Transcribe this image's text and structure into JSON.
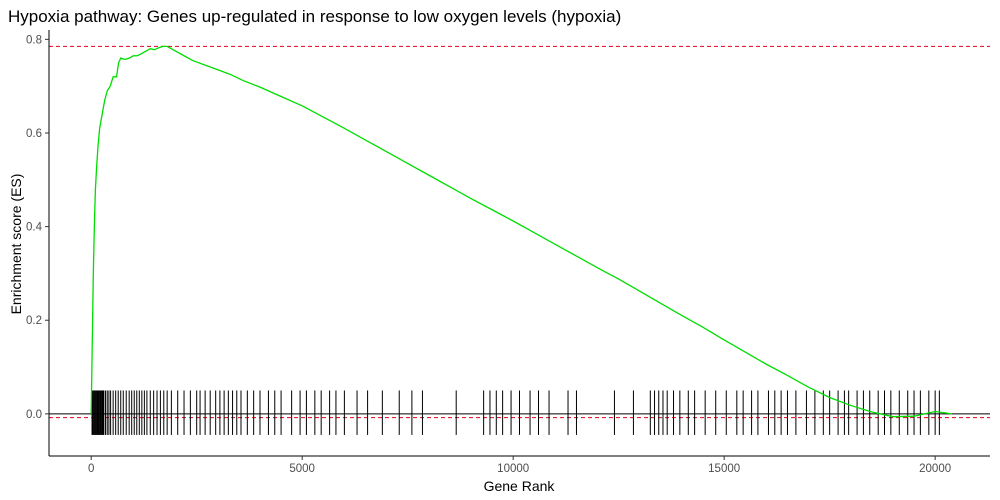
{
  "chart_data": {
    "type": "line",
    "title": "Hypoxia pathway: Genes up-regulated in response to low oxygen levels (hypoxia)",
    "xlabel": "Gene Rank",
    "ylabel": "Enrichment score (ES)",
    "xlim": [
      -1000,
      21300
    ],
    "ylim": [
      -0.09,
      0.82
    ],
    "x_ticks": [
      0,
      5000,
      10000,
      15000,
      20000
    ],
    "x_tick_labels": [
      "0",
      "5000",
      "10000",
      "15000",
      "20000"
    ],
    "y_ticks": [
      0.0,
      0.2,
      0.4,
      0.6,
      0.8
    ],
    "y_tick_labels": [
      "0.0",
      "0.2",
      "0.4",
      "0.6",
      "0.8"
    ],
    "grid": false,
    "colors": {
      "es_curve": "#00dd00",
      "reference_lines": "#e3001b",
      "hits": "#000000",
      "zero_line": "#000000"
    },
    "series": [
      {
        "x": [
          0,
          20,
          50,
          80,
          100,
          130,
          160,
          200,
          260,
          320,
          380,
          450,
          520,
          600,
          650,
          700,
          800,
          900,
          1000,
          1100,
          1200,
          1300,
          1400,
          1500,
          1600,
          1700,
          1800,
          2000,
          2200,
          2400,
          2700,
          3000,
          3300,
          3600,
          4000,
          4500,
          5000,
          5500,
          6000,
          6500,
          7000,
          7500,
          8000,
          8500,
          9000,
          9500,
          10000,
          10500,
          11000,
          11500,
          12000,
          12500,
          13000,
          13500,
          14000,
          14500,
          15000,
          15500,
          16000,
          16500,
          17000,
          17500,
          18000,
          18500,
          19000,
          19500,
          20000,
          20400
        ],
        "values": [
          0.0,
          0.12,
          0.3,
          0.42,
          0.48,
          0.53,
          0.57,
          0.61,
          0.64,
          0.67,
          0.69,
          0.7,
          0.72,
          0.72,
          0.75,
          0.76,
          0.757,
          0.76,
          0.765,
          0.765,
          0.77,
          0.775,
          0.78,
          0.778,
          0.782,
          0.785,
          0.785,
          0.775,
          0.765,
          0.755,
          0.745,
          0.735,
          0.725,
          0.712,
          0.698,
          0.678,
          0.658,
          0.634,
          0.61,
          0.585,
          0.56,
          0.535,
          0.51,
          0.485,
          0.46,
          0.436,
          0.412,
          0.387,
          0.362,
          0.337,
          0.312,
          0.288,
          0.262,
          0.236,
          0.21,
          0.185,
          0.158,
          0.132,
          0.106,
          0.082,
          0.057,
          0.035,
          0.018,
          0.004,
          -0.006,
          -0.005,
          0.005,
          0.0
        ]
      }
    ],
    "hline_max": 0.785,
    "hline_min": -0.008,
    "hline_zero": 0.0,
    "hits": [
      20,
      40,
      60,
      80,
      100,
      120,
      140,
      160,
      180,
      200,
      220,
      240,
      260,
      280,
      300,
      340,
      380,
      420,
      460,
      520,
      580,
      640,
      700,
      760,
      830,
      900,
      960,
      1020,
      1080,
      1140,
      1200,
      1260,
      1320,
      1400,
      1480,
      1560,
      1640,
      1720,
      1800,
      1900,
      2050,
      2200,
      2350,
      2500,
      2580,
      2700,
      2820,
      2950,
      3050,
      3150,
      3250,
      3350,
      3450,
      3550,
      3700,
      3850,
      4000,
      4200,
      4350,
      4500,
      4750,
      4950,
      5100,
      5300,
      5450,
      5650,
      5800,
      6000,
      6300,
      6550,
      6900,
      7300,
      7600,
      7850,
      8650,
      9300,
      9450,
      9600,
      9750,
      9950,
      10150,
      10400,
      10600,
      10850,
      11300,
      11500,
      12400,
      12850,
      13250,
      13350,
      13450,
      13550,
      13650,
      13800,
      13950,
      14150,
      14300,
      14550,
      14800,
      15050,
      15300,
      15450,
      15650,
      15800,
      16050,
      16200,
      16350,
      16500,
      16700,
      16950,
      17150,
      17350,
      17500,
      17700,
      17850,
      17950,
      18150,
      18300,
      18450,
      18650,
      18800,
      18950,
      19150,
      19350,
      19500,
      19650,
      19850,
      20000,
      20100
    ]
  }
}
